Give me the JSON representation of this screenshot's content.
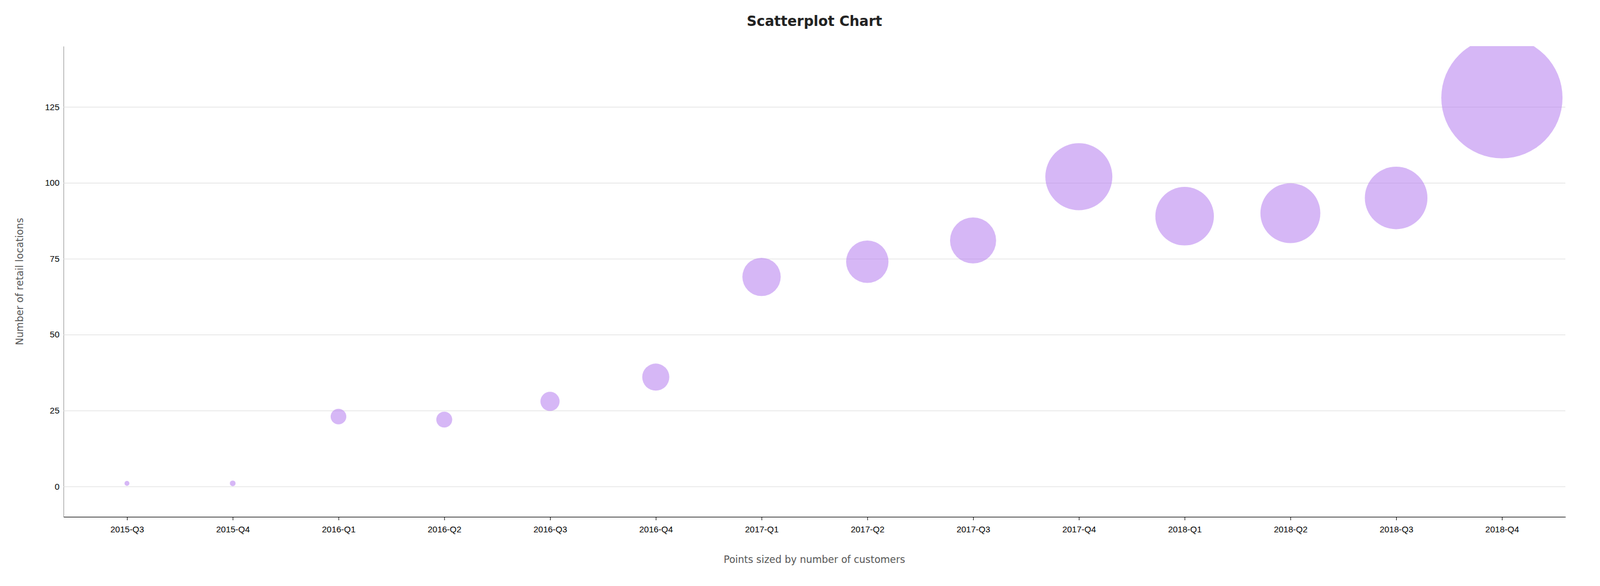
{
  "chart_data": {
    "type": "scatter",
    "title": "Scatterplot Chart",
    "x_label": "Points sized by number of customers",
    "y_label": "Number of retail locations",
    "categories": [
      "2015-Q3",
      "2015-Q4",
      "2016-Q1",
      "2016-Q2",
      "2016-Q3",
      "2016-Q4",
      "2017-Q1",
      "2017-Q2",
      "2017-Q3",
      "2017-Q4",
      "2018-Q1",
      "2018-Q2",
      "2018-Q3",
      "2018-Q4"
    ],
    "values": [
      1,
      1,
      23,
      22,
      28,
      36,
      69,
      74,
      81,
      102,
      89,
      90,
      95,
      128
    ],
    "sizes": [
      30,
      40,
      300,
      310,
      450,
      900,
      1800,
      2200,
      2600,
      5500,
      4200,
      4400,
      4800,
      18000
    ],
    "color": "#b57bee",
    "ylim": [
      -10,
      145
    ],
    "yticks": [
      0,
      25,
      50,
      75,
      100,
      125
    ],
    "grid": true
  }
}
